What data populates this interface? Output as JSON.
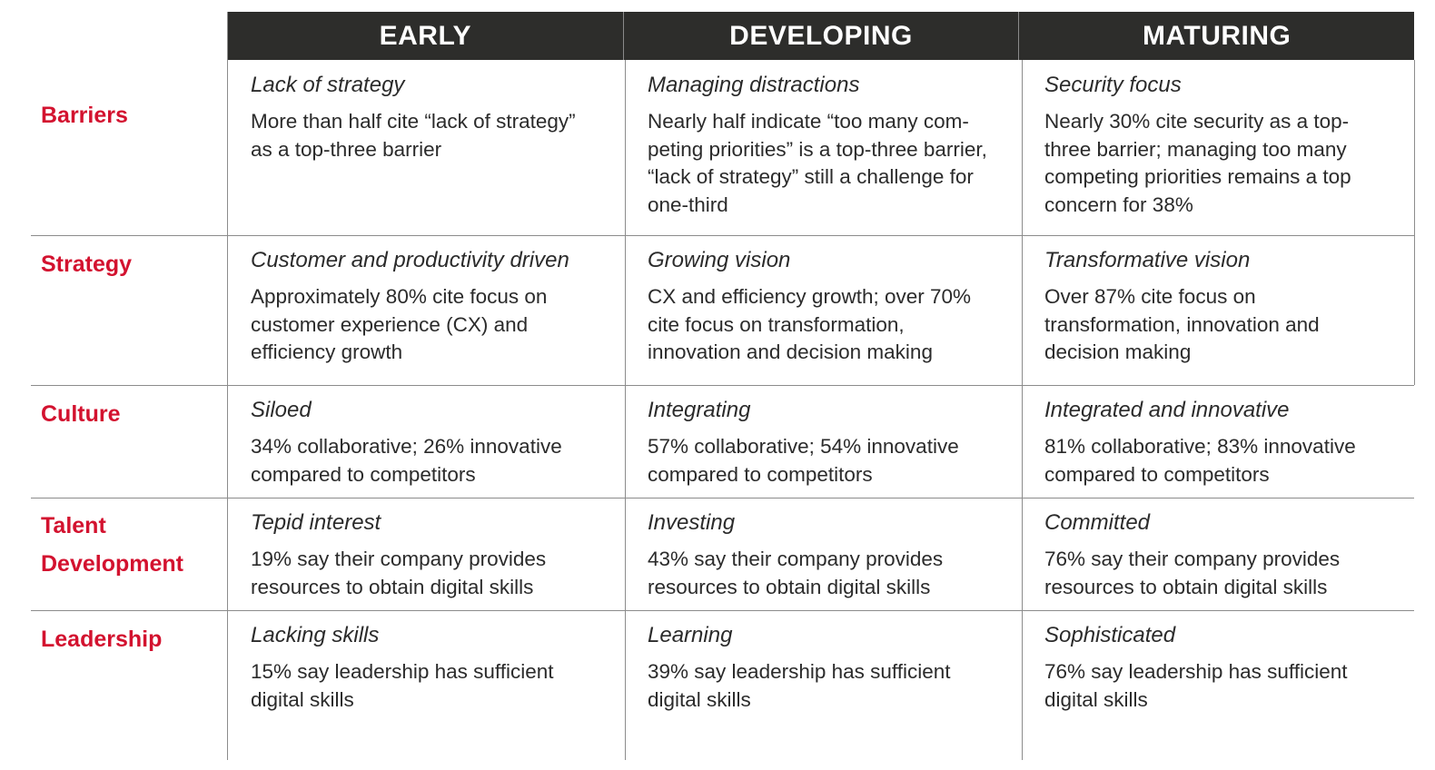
{
  "columns": [
    "EARLY",
    "DEVELOPING",
    "MATURING"
  ],
  "rows": [
    {
      "label": "Barriers",
      "cells": [
        {
          "title": "Lack of strategy",
          "lines": [
            "More than half cite “lack of strategy”",
            "as a top-three barrier"
          ]
        },
        {
          "title": "Managing distractions",
          "lines": [
            "Nearly half indicate “too many com-",
            "peting priorities” is a top-three barrier,",
            "“lack of strategy” still a challenge for",
            "one-third"
          ]
        },
        {
          "title": "Security focus",
          "lines": [
            "Nearly 30% cite security as a top-",
            "three barrier; managing too many",
            "competing priorities remains a top",
            "concern for 38%"
          ]
        }
      ]
    },
    {
      "label": "Strategy",
      "cells": [
        {
          "title": "Customer and productivity driven",
          "lines": [
            "Approximately 80% cite focus on",
            "customer experience (CX) and",
            "efficiency growth"
          ]
        },
        {
          "title": "Growing vision",
          "lines": [
            "CX and efficiency growth; over 70%",
            "cite focus on transformation,",
            "innovation and decision making"
          ]
        },
        {
          "title": "Transformative vision",
          "lines": [
            "Over 87% cite focus on",
            "transformation, innovation and",
            "decision making"
          ]
        }
      ]
    },
    {
      "label": "Culture",
      "cells": [
        {
          "title": "Siloed",
          "lines": [
            "34% collaborative; 26% innovative",
            "compared to competitors"
          ]
        },
        {
          "title": "Integrating",
          "lines": [
            "57% collaborative; 54% innovative",
            "compared to competitors"
          ]
        },
        {
          "title": "Integrated and innovative",
          "lines": [
            "81% collaborative; 83% innovative",
            "compared to competitors"
          ]
        }
      ]
    },
    {
      "label_lines": [
        "Talent",
        "Development"
      ],
      "cells": [
        {
          "title": "Tepid interest",
          "lines": [
            "19% say their company provides",
            "resources to obtain digital skills"
          ]
        },
        {
          "title": "Investing",
          "lines": [
            "43% say their company provides",
            "resources to obtain digital skills"
          ]
        },
        {
          "title": "Committed",
          "lines": [
            "76% say their company provides",
            "resources to obtain digital skills"
          ]
        }
      ]
    },
    {
      "label": "Leadership",
      "cells": [
        {
          "title": "Lacking skills",
          "lines": [
            "15% say leadership has sufficient",
            "digital skills"
          ]
        },
        {
          "title": "Learning",
          "lines": [
            "39% say leadership has sufficient",
            "digital skills"
          ]
        },
        {
          "title": "Sophisticated",
          "lines": [
            "76% say leadership has sufficient",
            "digital skills"
          ]
        }
      ]
    }
  ]
}
